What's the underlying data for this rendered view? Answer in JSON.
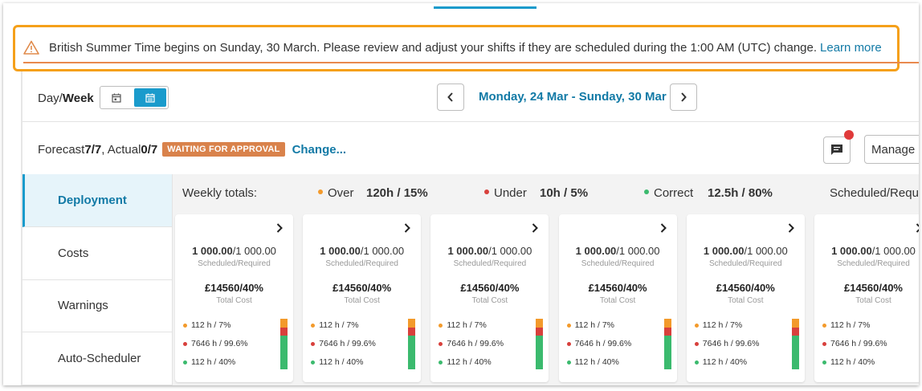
{
  "banner": {
    "message": "British Summer Time begins on Sunday, 30 March. Please review and adjust your shifts if they are scheduled during the 1:00 AM (UTC) change.",
    "link": "Learn more"
  },
  "toolbar": {
    "day_label": "Day/",
    "week_label": "Week",
    "date_range": "Monday, 24 Mar - Sunday, 30 Mar"
  },
  "forecast": {
    "forecast_label": "Forecast ",
    "forecast_value": "7/7",
    "actual_label": ", Actual ",
    "actual_value": "0/7",
    "status_badge": "WAITING FOR APPROVAL",
    "change_link": "Change...",
    "manage_label": "Manage"
  },
  "sidebar": {
    "items": [
      {
        "label": "Deployment"
      },
      {
        "label": "Costs"
      },
      {
        "label": "Warnings"
      },
      {
        "label": "Auto-Scheduler"
      }
    ]
  },
  "totals": {
    "title": "Weekly totals:",
    "over_label": "Over",
    "over_value": "120h / 15%",
    "under_label": "Under",
    "under_value": "10h / 5%",
    "correct_label": "Correct",
    "correct_value": "12.5h / 80%",
    "sched_label": "Scheduled/Required"
  },
  "colors": {
    "accent": "#1a9bcc",
    "link": "#127aa6",
    "warning_border": "#f5a01a",
    "badge": "#d9824b",
    "over": "#f39a2b",
    "under": "#d8403c",
    "correct": "#3bba6e"
  },
  "cards": [
    {
      "scheduled": "1 000.00",
      "required": "/1 000.00",
      "sched_sub": "Scheduled/Required",
      "cost": "£14560/40%",
      "cost_sub": "Total Cost",
      "over": "112 h / 7%",
      "under": "7646 h / 99.6%",
      "correct": "112 h / 40%"
    },
    {
      "scheduled": "1 000.00",
      "required": "/1 000.00",
      "sched_sub": "Scheduled/Required",
      "cost": "£14560/40%",
      "cost_sub": "Total Cost",
      "over": "112 h / 7%",
      "under": "7646 h / 99.6%",
      "correct": "112 h / 40%"
    },
    {
      "scheduled": "1 000.00",
      "required": "/1 000.00",
      "sched_sub": "Scheduled/Required",
      "cost": "£14560/40%",
      "cost_sub": "Total Cost",
      "over": "112 h / 7%",
      "under": "7646 h / 99.6%",
      "correct": "112 h / 40%"
    },
    {
      "scheduled": "1 000.00",
      "required": "/1 000.00",
      "sched_sub": "Scheduled/Required",
      "cost": "£14560/40%",
      "cost_sub": "Total Cost",
      "over": "112 h / 7%",
      "under": "7646 h / 99.6%",
      "correct": "112 h / 40%"
    },
    {
      "scheduled": "1 000.00",
      "required": "/1 000.00",
      "sched_sub": "Scheduled/Required",
      "cost": "£14560/40%",
      "cost_sub": "Total Cost",
      "over": "112 h / 7%",
      "under": "7646 h / 99.6%",
      "correct": "112 h / 40%"
    },
    {
      "scheduled": "1 000.00",
      "required": "/1 000.00",
      "sched_sub": "Scheduled/Required",
      "cost": "£14560/40%",
      "cost_sub": "Total Cost",
      "over": "112 h / 7%",
      "under": "7646 h / 99.6%",
      "correct": "112 h / 40%"
    }
  ]
}
